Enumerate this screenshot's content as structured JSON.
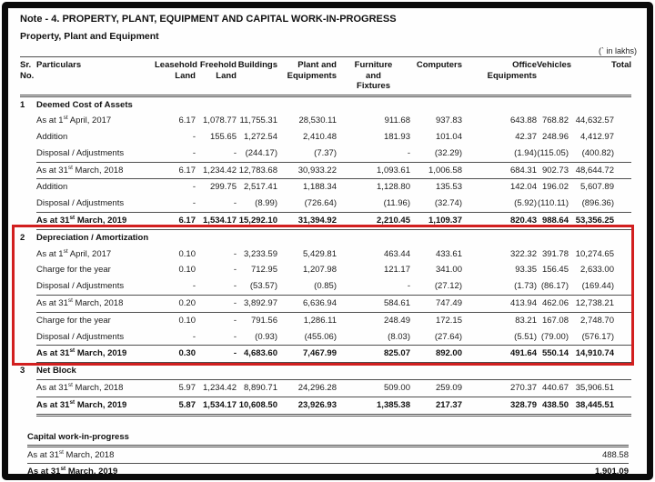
{
  "meta": {
    "note_title": "Note - 4. PROPERTY, PLANT, EQUIPMENT AND CAPITAL WORK-IN-PROGRESS",
    "subtitle": "Property, Plant and Equipment",
    "units_note": "(` in lakhs)"
  },
  "highlight": {
    "box_color": "#d21f1f"
  },
  "table": {
    "columns": [
      {
        "key": "sr",
        "lines": [
          "Sr.",
          "No."
        ]
      },
      {
        "key": "particulars",
        "lines": [
          "Particulars"
        ]
      },
      {
        "key": "leasehold",
        "lines": [
          "Leasehold",
          "Land"
        ]
      },
      {
        "key": "freehold",
        "lines": [
          "Freehold",
          "Land"
        ]
      },
      {
        "key": "buildings",
        "lines": [
          "Buildings"
        ]
      },
      {
        "key": "plant",
        "lines": [
          "Plant and",
          "Equipments"
        ]
      },
      {
        "key": "furniture",
        "lines": [
          "Furniture",
          "and",
          "Fixtures"
        ]
      },
      {
        "key": "computers",
        "lines": [
          "Computers"
        ]
      },
      {
        "key": "office",
        "lines": [
          "Office",
          "Equipments"
        ]
      },
      {
        "key": "vehicles",
        "lines": [
          "Vehicles"
        ]
      },
      {
        "key": "total",
        "lines": [
          "Total"
        ],
        "colspan": 2
      }
    ],
    "sections": [
      {
        "sr": "1",
        "title": "Deemed Cost of Assets",
        "highlighted": false,
        "rows": [
          {
            "label": "As at 1^st^ April, 2017",
            "bold": false,
            "rule": "none",
            "values": [
              "6.17",
              "1,078.77",
              "11,755.31",
              "28,530.11",
              "911.68",
              "937.83",
              "643.88",
              "768.82",
              "44,632.57"
            ]
          },
          {
            "label": "Addition",
            "bold": false,
            "rule": "none",
            "values": [
              "-",
              "155.65",
              "1,272.54",
              "2,410.48",
              "181.93",
              "101.04",
              "42.37",
              "248.96",
              "4,412.97"
            ]
          },
          {
            "label": "Disposal / Adjustments",
            "bold": false,
            "rule": "none",
            "values": [
              "-",
              "-",
              "(244.17)",
              "(7.37)",
              "-",
              "(32.29)",
              "(1.94)",
              "(115.05)",
              "(400.82)"
            ]
          },
          {
            "label": "As at 31^st^ March, 2018",
            "bold": false,
            "rule": "sub",
            "values": [
              "6.17",
              "1,234.42",
              "12,783.68",
              "30,933.22",
              "1,093.61",
              "1,006.58",
              "684.31",
              "902.73",
              "48,644.72"
            ]
          },
          {
            "label": "Addition",
            "bold": false,
            "rule": "none",
            "values": [
              "-",
              "299.75",
              "2,517.41",
              "1,188.34",
              "1,128.80",
              "135.53",
              "142.04",
              "196.02",
              "5,607.89"
            ]
          },
          {
            "label": "Disposal / Adjustments",
            "bold": false,
            "rule": "none",
            "values": [
              "-",
              "-",
              "(8.99)",
              "(726.64)",
              "(11.96)",
              "(32.74)",
              "(5.92)",
              "(110.11)",
              "(896.36)"
            ]
          },
          {
            "label": "As at 31^st^ March, 2019",
            "bold": true,
            "rule": "sub",
            "values": [
              "6.17",
              "1,534.17",
              "15,292.10",
              "31,394.92",
              "2,210.45",
              "1,109.37",
              "820.43",
              "988.64",
              "53,356.25"
            ]
          }
        ]
      },
      {
        "sr": "2",
        "title": "Depreciation / Amortization",
        "highlighted": true,
        "rows": [
          {
            "label": "As at 1^st^ April, 2017",
            "bold": false,
            "rule": "none",
            "values": [
              "0.10",
              "-",
              "3,233.59",
              "5,429.81",
              "463.44",
              "433.61",
              "322.32",
              "391.78",
              "10,274.65"
            ]
          },
          {
            "label": "Charge for the year",
            "bold": false,
            "rule": "none",
            "values": [
              "0.10",
              "-",
              "712.95",
              "1,207.98",
              "121.17",
              "341.00",
              "93.35",
              "156.45",
              "2,633.00"
            ]
          },
          {
            "label": "Disposal / Adjustments",
            "bold": false,
            "rule": "none",
            "values": [
              "-",
              "-",
              "(53.57)",
              "(0.85)",
              "-",
              "(27.12)",
              "(1.73)",
              "(86.17)",
              "(169.44)"
            ]
          },
          {
            "label": "As at 31^st^ March, 2018",
            "bold": false,
            "rule": "sub",
            "values": [
              "0.20",
              "-",
              "3,892.97",
              "6,636.94",
              "584.61",
              "747.49",
              "413.94",
              "462.06",
              "12,738.21"
            ]
          },
          {
            "label": "Charge for the year",
            "bold": false,
            "rule": "none",
            "values": [
              "0.10",
              "-",
              "791.56",
              "1,286.11",
              "248.49",
              "172.15",
              "83.21",
              "167.08",
              "2,748.70"
            ]
          },
          {
            "label": "Disposal / Adjustments",
            "bold": false,
            "rule": "none",
            "values": [
              "-",
              "-",
              "(0.93)",
              "(455.06)",
              "(8.03)",
              "(27.64)",
              "(5.51)",
              "(79.00)",
              "(576.17)"
            ]
          },
          {
            "label": "As at 31^st^ March, 2019",
            "bold": true,
            "rule": "sub",
            "values": [
              "0.30",
              "-",
              "4,683.60",
              "7,467.99",
              "825.07",
              "892.00",
              "491.64",
              "550.14",
              "14,910.74"
            ]
          }
        ]
      },
      {
        "sr": "3",
        "title": "Net Block",
        "highlighted": false,
        "rows": [
          {
            "label": "As at 31^st^ March, 2018",
            "bold": false,
            "rule": "top",
            "values": [
              "5.97",
              "1,234.42",
              "8,890.71",
              "24,296.28",
              "509.00",
              "259.09",
              "270.37",
              "440.67",
              "35,906.51"
            ]
          },
          {
            "label": "As at 31^st^ March, 2019",
            "bold": true,
            "rule": "end",
            "values": [
              "5.87",
              "1,534.17",
              "10,608.50",
              "23,926.93",
              "1,385.38",
              "217.37",
              "328.79",
              "438.50",
              "38,445.51"
            ]
          }
        ]
      }
    ],
    "cwip": {
      "title": "Capital work-in-progress",
      "rows": [
        {
          "label": "As at 31^st^ March, 2018",
          "bold": false,
          "total": "488.58"
        },
        {
          "label": "As at 31^st^ March, 2019",
          "bold": true,
          "total": "1,901.09"
        }
      ]
    }
  }
}
